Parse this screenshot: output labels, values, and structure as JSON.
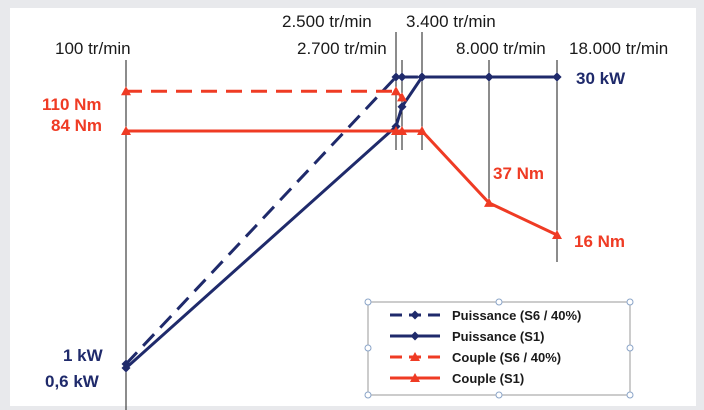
{
  "chart_data": {
    "type": "line",
    "x_label_positions_note": "",
    "speed_labels": {
      "s100": "100 tr/min",
      "s2500": "2.500 tr/min",
      "s2700": "2.700 tr/min",
      "s3400": "3.400 tr/min",
      "s8000": "8.000 tr/min",
      "s18000": "18.000 tr/min"
    },
    "value_labels": {
      "p30": "30 kW",
      "p1": "1 kW",
      "p06": "0,6 kW",
      "t110": "110 Nm",
      "t84": "84 Nm",
      "t37": "37 Nm",
      "t16": "16 Nm"
    },
    "series": [
      {
        "name": "Puissance (S6 / 40%)",
        "kind": "power",
        "style": "dashed",
        "color": "#1f2a6b",
        "points": [
          [
            "100 tr/min",
            1
          ],
          [
            "2.500 tr/min",
            30
          ],
          [
            "2.700 tr/min",
            30
          ],
          [
            "3.400 tr/min",
            30
          ],
          [
            "8.000 tr/min",
            30
          ],
          [
            "18.000 tr/min",
            30
          ]
        ]
      },
      {
        "name": "Puissance (S1)",
        "kind": "power",
        "style": "solid",
        "color": "#1f2a6b",
        "points": [
          [
            "100 tr/min",
            0.6
          ],
          [
            "2.500 tr/min",
            25
          ],
          [
            "2.700 tr/min",
            27
          ],
          [
            "3.400 tr/min",
            30
          ],
          [
            "8.000 tr/min",
            30
          ],
          [
            "18.000 tr/min",
            30
          ]
        ]
      },
      {
        "name": "Couple (S6 / 40%)",
        "kind": "torque",
        "style": "dashed",
        "color": "#ef3b24",
        "points": [
          [
            "100 tr/min",
            110
          ],
          [
            "2.500 tr/min",
            110
          ],
          [
            "2.700 tr/min",
            106
          ]
        ]
      },
      {
        "name": "Couple (S1)",
        "kind": "torque",
        "style": "solid",
        "color": "#ef3b24",
        "points": [
          [
            "100 tr/min",
            84
          ],
          [
            "2.500 tr/min",
            84
          ],
          [
            "2.700 tr/min",
            84
          ],
          [
            "3.400 tr/min",
            84
          ],
          [
            "8.000 tr/min",
            37
          ],
          [
            "18.000 tr/min",
            16
          ]
        ]
      }
    ],
    "legend": {
      "placement": "bottom-right",
      "items": [
        {
          "label": "Puissance (S6 / 40%)",
          "color": "#1f2a6b",
          "style": "dashed",
          "marker": "diamond"
        },
        {
          "label": "Puissance (S1)",
          "color": "#1f2a6b",
          "style": "solid",
          "marker": "diamond"
        },
        {
          "label": "Couple (S6 / 40%)",
          "color": "#ef3b24",
          "style": "dashed",
          "marker": "triangle"
        },
        {
          "label": "Couple (S1)",
          "color": "#ef3b24",
          "style": "solid",
          "marker": "triangle"
        }
      ]
    }
  }
}
